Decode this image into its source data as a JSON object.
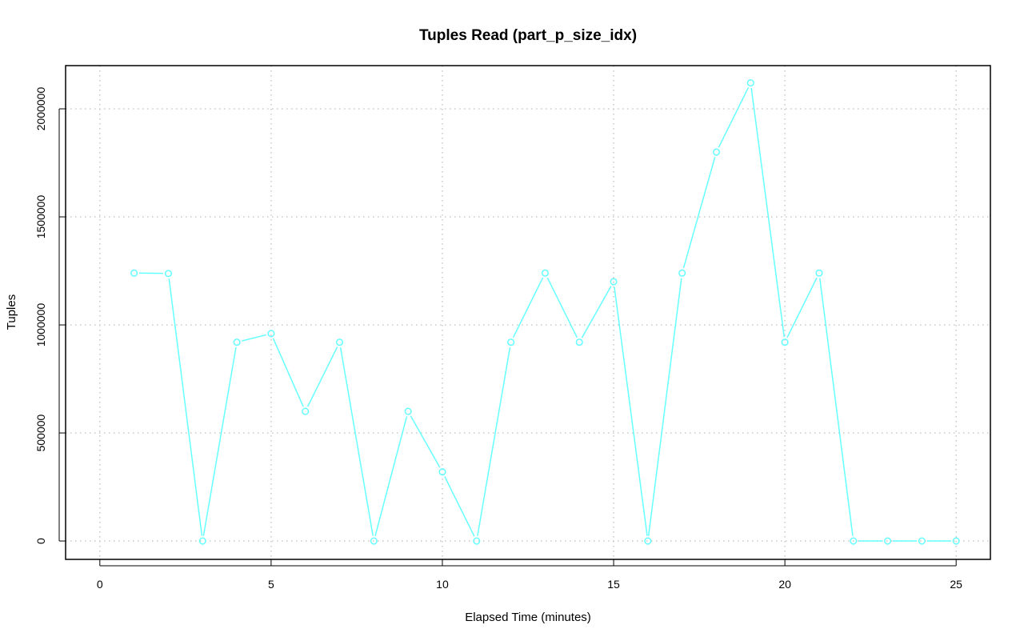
{
  "chart_data": {
    "type": "line",
    "title": "Tuples Read (part_p_size_idx)",
    "xlabel": "Elapsed Time (minutes)",
    "ylabel": "Tuples",
    "xlim": [
      -1,
      26
    ],
    "ylim": [
      -85000,
      2200000
    ],
    "x_ticks": [
      0,
      5,
      10,
      15,
      20,
      25
    ],
    "y_ticks": [
      0,
      500000,
      1000000,
      1500000,
      2000000
    ],
    "grid": true,
    "line_color": "#66ffff",
    "series": [
      {
        "x": [
          1,
          2,
          3,
          4,
          5,
          6,
          7,
          8,
          9,
          10,
          11,
          12,
          13,
          14,
          15,
          16,
          17,
          18,
          19,
          20,
          21,
          22,
          23,
          24,
          25
        ],
        "values": [
          1240000,
          1238000,
          0,
          920000,
          960000,
          600000,
          920000,
          0,
          600000,
          320000,
          0,
          920000,
          1240000,
          920000,
          1200000,
          0,
          1240000,
          1800000,
          2120000,
          920000,
          1240000,
          0,
          0,
          0,
          0
        ]
      }
    ]
  }
}
